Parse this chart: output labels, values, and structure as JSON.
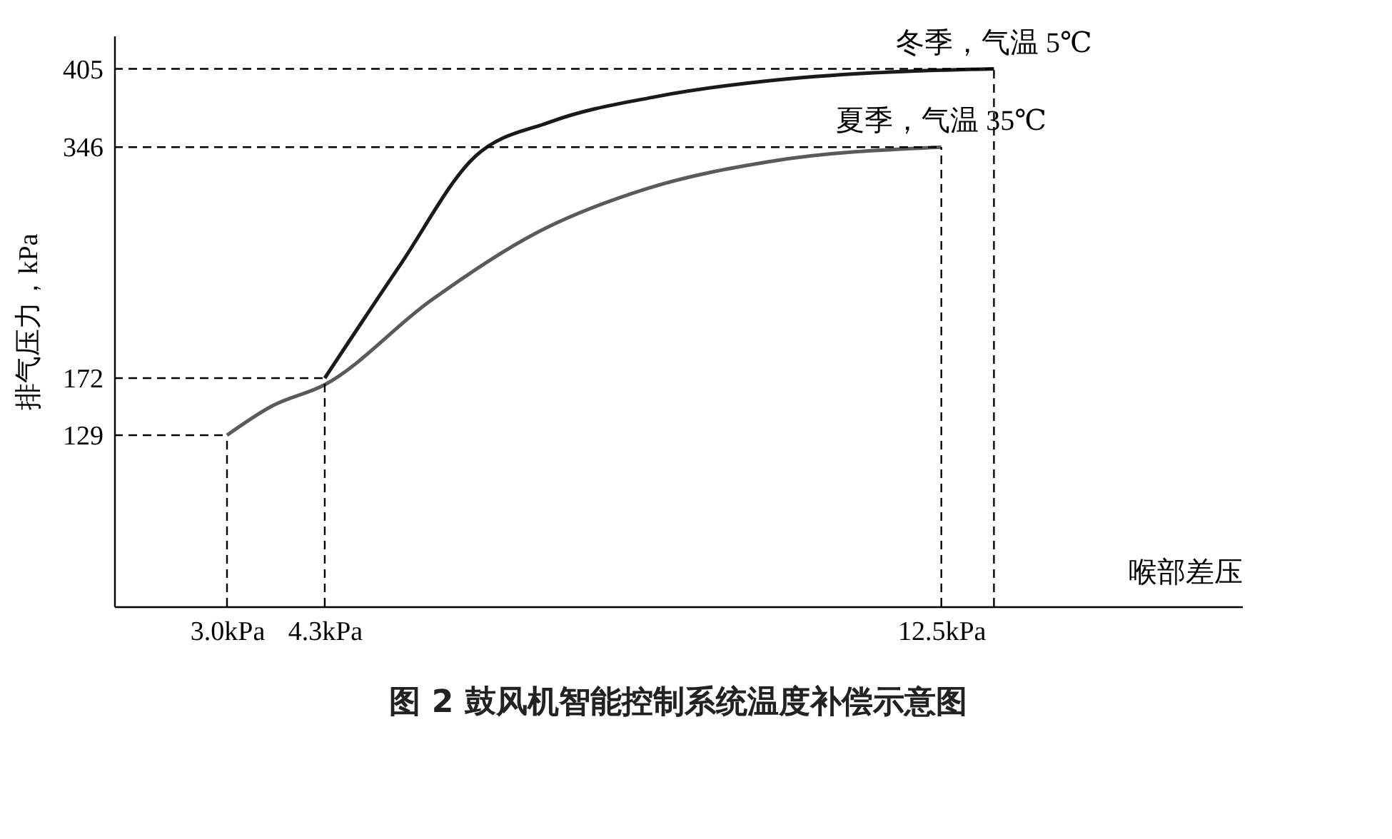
{
  "chart_data": {
    "type": "line",
    "title": "图 2  鼓风机智能控制系统温度补偿示意图",
    "xlabel": "喉部差压",
    "ylabel": "排气压力，kPa",
    "xlim": [
      1.5,
      16.5
    ],
    "xticks": [
      {
        "value": 3.0,
        "label": "3.0kPa"
      },
      {
        "value": 4.3,
        "label": "4.3kPa"
      },
      {
        "value": 12.5,
        "label": "12.5kPa"
      }
    ],
    "ylim": [
      0,
      430
    ],
    "yticks": [
      129,
      172,
      346,
      405
    ],
    "grid": false,
    "legend": false,
    "line_style": "solid",
    "series": [
      {
        "name": "冬季，气温 5℃",
        "color": "#1a1a1a",
        "x": [
          4.3,
          5.3,
          6.3,
          7.3,
          8.7,
          10.2,
          11.6,
          13.2
        ],
        "values": [
          172,
          257,
          339,
          365,
          384,
          396,
          402,
          405
        ]
      },
      {
        "name": "夏季，气温 35℃",
        "color": "#5a5a5a",
        "x": [
          3.0,
          3.6,
          4.3,
          5.7,
          7.1,
          8.6,
          10.2,
          12.5
        ],
        "values": [
          129,
          151,
          167,
          230,
          281,
          315,
          335,
          346
        ]
      }
    ],
    "ref_lines": [
      {
        "axis": "y",
        "value": 405,
        "color": "#000000",
        "line_style": "dashed"
      },
      {
        "axis": "y",
        "value": 346,
        "color": "#000000",
        "line_style": "dashed"
      },
      {
        "axis": "y",
        "value": 172,
        "color": "#000000",
        "line_style": "dashed"
      },
      {
        "axis": "y",
        "value": 129,
        "color": "#000000",
        "line_style": "dashed"
      },
      {
        "axis": "x",
        "value": 3.0,
        "color": "#000000",
        "line_style": "dashed"
      },
      {
        "axis": "x",
        "value": 4.3,
        "color": "#000000",
        "line_style": "dashed"
      },
      {
        "axis": "x",
        "value": 12.5,
        "color": "#000000",
        "line_style": "dashed"
      },
      {
        "axis": "x",
        "value": 13.2,
        "color": "#000000",
        "line_style": "dashed"
      }
    ]
  }
}
